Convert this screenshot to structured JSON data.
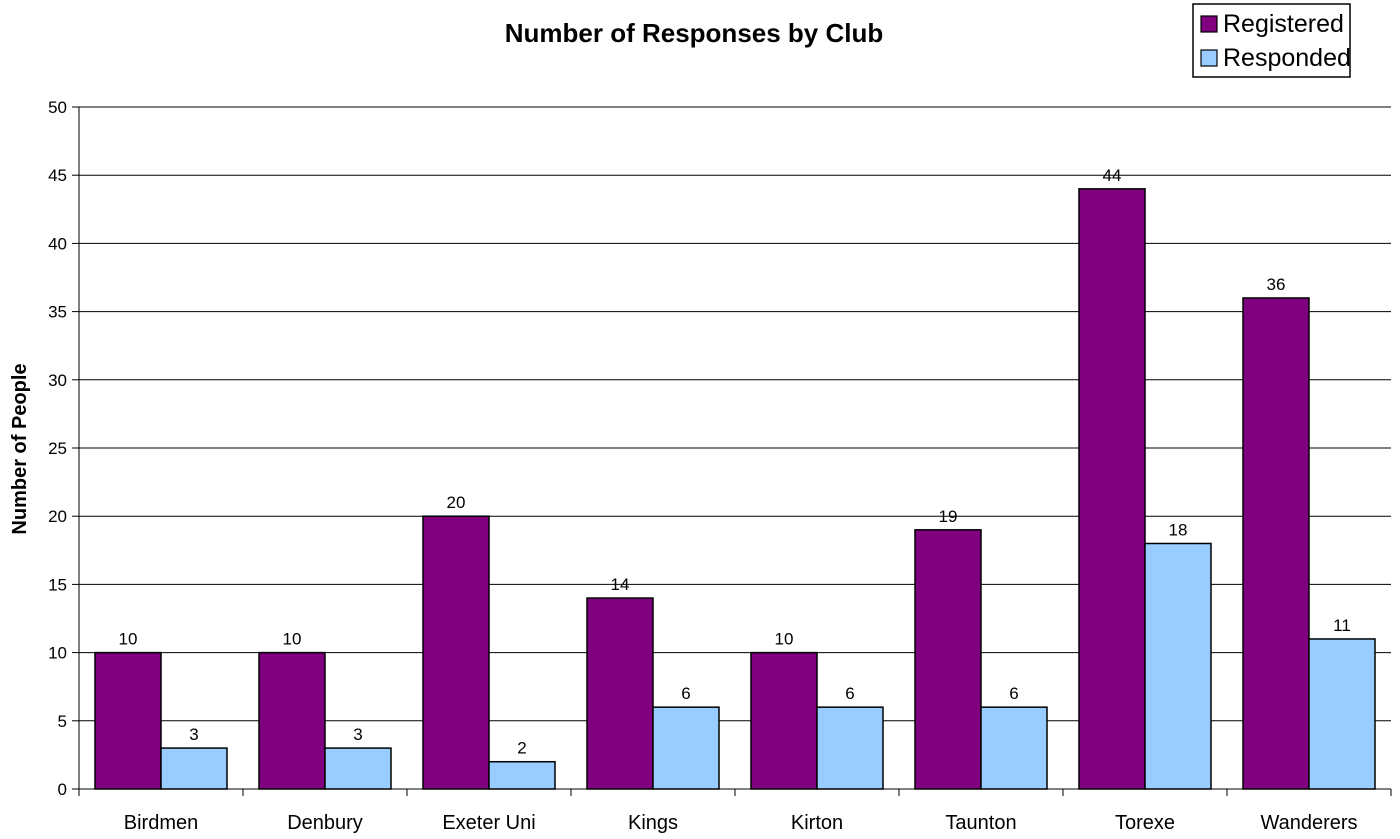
{
  "chart_data": {
    "type": "bar",
    "title": "Number of Responses by Club",
    "xlabel": "",
    "ylabel": "Number of People",
    "categories": [
      "Birdmen",
      "Denbury",
      "Exeter Uni",
      "Kings",
      "Kirton",
      "Taunton",
      "Torexe",
      "Wanderers"
    ],
    "series": [
      {
        "name": "Registered",
        "color": "#800080",
        "values": [
          10,
          10,
          20,
          14,
          10,
          19,
          44,
          36
        ]
      },
      {
        "name": "Responded",
        "color": "#99CCFF",
        "values": [
          3,
          3,
          2,
          6,
          6,
          6,
          18,
          11
        ]
      }
    ],
    "ylim": [
      0,
      50
    ],
    "yticks": [
      0,
      5,
      10,
      15,
      20,
      25,
      30,
      35,
      40,
      45,
      50
    ],
    "grid": true,
    "legend_position": "top-right",
    "data_labels": true
  }
}
